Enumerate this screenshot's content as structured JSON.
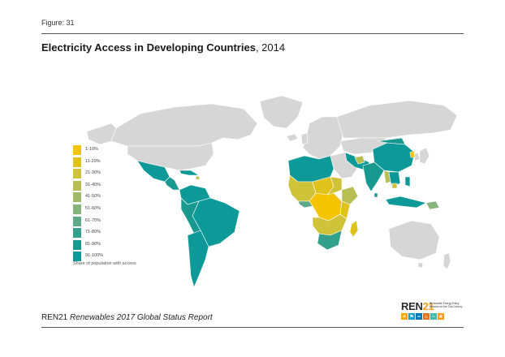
{
  "figure_label": "Figure: 31",
  "title": {
    "bold": "Electricity Access in Developing Countries",
    "normal": ", 2014"
  },
  "legend": {
    "items": [
      {
        "label": "1-10%",
        "color": "#f5c400"
      },
      {
        "label": "11-20%",
        "color": "#e0c21c"
      },
      {
        "label": "21-30%",
        "color": "#cfc33a"
      },
      {
        "label": "31-40%",
        "color": "#b8bf52"
      },
      {
        "label": "41-50%",
        "color": "#a0b968"
      },
      {
        "label": "51-60%",
        "color": "#86b47a"
      },
      {
        "label": "61-70%",
        "color": "#5faa86"
      },
      {
        "label": "71-80%",
        "color": "#33a08c"
      },
      {
        "label": "81-90%",
        "color": "#17998f"
      },
      {
        "label": "91-100%",
        "color": "#0e9999"
      }
    ],
    "caption": "Share of population with access"
  },
  "colors": {
    "no_data": "#d6d6d6",
    "rule": "#555555",
    "logo_accent": "#f29a1a"
  },
  "footer": {
    "org": "REN21",
    "report": "Renewables 2017 Global Status Report"
  },
  "logo": {
    "word_left": "REN",
    "word_right": "21",
    "tagline": "Renewable Energy Policy Network for the 21st Century",
    "icons": [
      {
        "name": "sun-icon",
        "glyph": "☀",
        "color": "#f5a800"
      },
      {
        "name": "wind-icon",
        "glyph": "⚑",
        "color": "#1aa1c9"
      },
      {
        "name": "water-icon",
        "glyph": "≈",
        "color": "#0076b6"
      },
      {
        "name": "flame-icon",
        "glyph": "♨",
        "color": "#e5731b"
      },
      {
        "name": "wave-icon",
        "glyph": "∼",
        "color": "#48b6b0"
      },
      {
        "name": "leaf-icon",
        "glyph": "❀",
        "color": "#f49b1e"
      }
    ]
  }
}
